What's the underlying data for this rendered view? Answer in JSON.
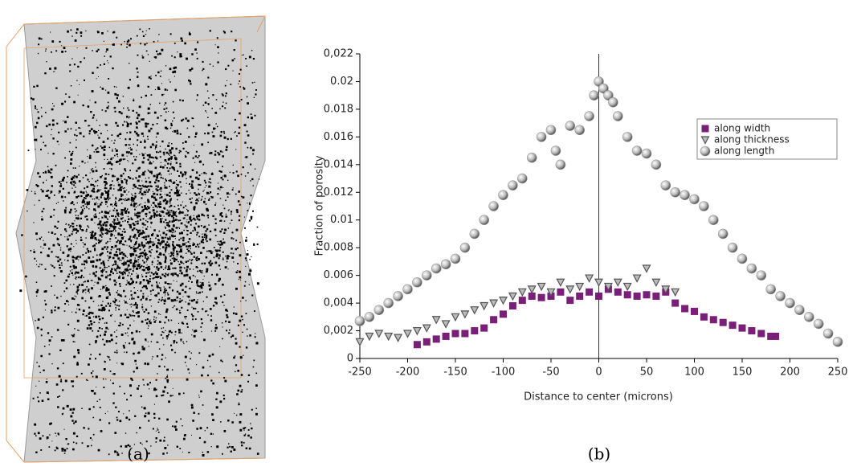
{
  "captions": {
    "a": "(a)",
    "b": "(b)"
  },
  "chart_data": {
    "type": "scatter",
    "x_label": "Distance to center (microns)",
    "y_label": "Fraction of porosity",
    "xlim": [
      -250,
      250
    ],
    "ylim": [
      0,
      0.022
    ],
    "xticks": [
      -250,
      -200,
      -150,
      -100,
      -50,
      0,
      50,
      100,
      150,
      200,
      250
    ],
    "yticks": [
      0,
      {
        "value": 0.002,
        "label": "0,002"
      },
      {
        "value": 0.004,
        "label": "0,004"
      },
      0.006,
      0.008,
      0.01,
      0.012,
      0.014,
      0.016,
      0.018,
      0.02,
      {
        "value": 0.022,
        "label": "0,022"
      }
    ],
    "legend": "upper right",
    "series": [
      {
        "name": "along width",
        "color": "#7a1f78",
        "marker": "square",
        "x": [
          -190,
          -180,
          -170,
          -160,
          -150,
          -140,
          -130,
          -120,
          -110,
          -100,
          -90,
          -80,
          -70,
          -60,
          -50,
          -40,
          -30,
          -20,
          -10,
          0,
          10,
          20,
          30,
          40,
          50,
          60,
          70,
          80,
          90,
          100,
          110,
          120,
          130,
          140,
          150,
          160,
          170,
          180,
          185
        ],
        "values": [
          0.001,
          0.0012,
          0.0014,
          0.0016,
          0.0018,
          0.0018,
          0.002,
          0.0022,
          0.0028,
          0.0032,
          0.0038,
          0.0042,
          0.0045,
          0.0044,
          0.0045,
          0.0048,
          0.0042,
          0.0045,
          0.0048,
          0.0045,
          0.005,
          0.0048,
          0.0046,
          0.0045,
          0.0046,
          0.0045,
          0.0048,
          0.004,
          0.0036,
          0.0034,
          0.003,
          0.0028,
          0.0026,
          0.0024,
          0.0022,
          0.002,
          0.0018,
          0.0016,
          0.0016
        ]
      },
      {
        "name": "along thickness",
        "color": "#555555",
        "marker": "triangle-down",
        "x": [
          -250,
          -240,
          -230,
          -220,
          -210,
          -200,
          -190,
          -180,
          -170,
          -160,
          -150,
          -140,
          -130,
          -120,
          -110,
          -100,
          -90,
          -80,
          -70,
          -60,
          -50,
          -40,
          -30,
          -20,
          -10,
          0,
          10,
          20,
          30,
          40,
          50,
          60,
          70,
          80
        ],
        "values": [
          0.0012,
          0.0016,
          0.0018,
          0.0016,
          0.0015,
          0.0018,
          0.002,
          0.0022,
          0.0028,
          0.0025,
          0.003,
          0.0032,
          0.0035,
          0.0038,
          0.004,
          0.0042,
          0.0045,
          0.0048,
          0.005,
          0.0052,
          0.0048,
          0.0055,
          0.005,
          0.0052,
          0.0058,
          0.0055,
          0.0052,
          0.0055,
          0.0052,
          0.0058,
          0.0065,
          0.0055,
          0.005,
          0.0048
        ]
      },
      {
        "name": "along length",
        "color": "#9a9a9a",
        "marker": "circle",
        "x": [
          -250,
          -240,
          -230,
          -220,
          -210,
          -200,
          -190,
          -180,
          -170,
          -160,
          -150,
          -140,
          -130,
          -120,
          -110,
          -100,
          -90,
          -80,
          -70,
          -60,
          -50,
          -45,
          -40,
          -30,
          -20,
          -10,
          -5,
          0,
          5,
          10,
          15,
          20,
          30,
          40,
          50,
          60,
          70,
          80,
          90,
          100,
          110,
          120,
          130,
          140,
          150,
          160,
          170,
          180,
          190,
          200,
          210,
          220,
          230,
          240,
          250
        ],
        "values": [
          0.0027,
          0.003,
          0.0035,
          0.004,
          0.0045,
          0.005,
          0.0055,
          0.006,
          0.0065,
          0.0068,
          0.0072,
          0.008,
          0.009,
          0.01,
          0.011,
          0.0118,
          0.0125,
          0.013,
          0.0145,
          0.016,
          0.0165,
          0.015,
          0.014,
          0.0168,
          0.0165,
          0.0175,
          0.019,
          0.02,
          0.0195,
          0.019,
          0.0185,
          0.0175,
          0.016,
          0.015,
          0.0148,
          0.014,
          0.0125,
          0.012,
          0.0118,
          0.0115,
          0.011,
          0.01,
          0.009,
          0.008,
          0.0072,
          0.0065,
          0.006,
          0.005,
          0.0045,
          0.004,
          0.0035,
          0.003,
          0.0025,
          0.0018,
          0.0012
        ]
      }
    ]
  }
}
